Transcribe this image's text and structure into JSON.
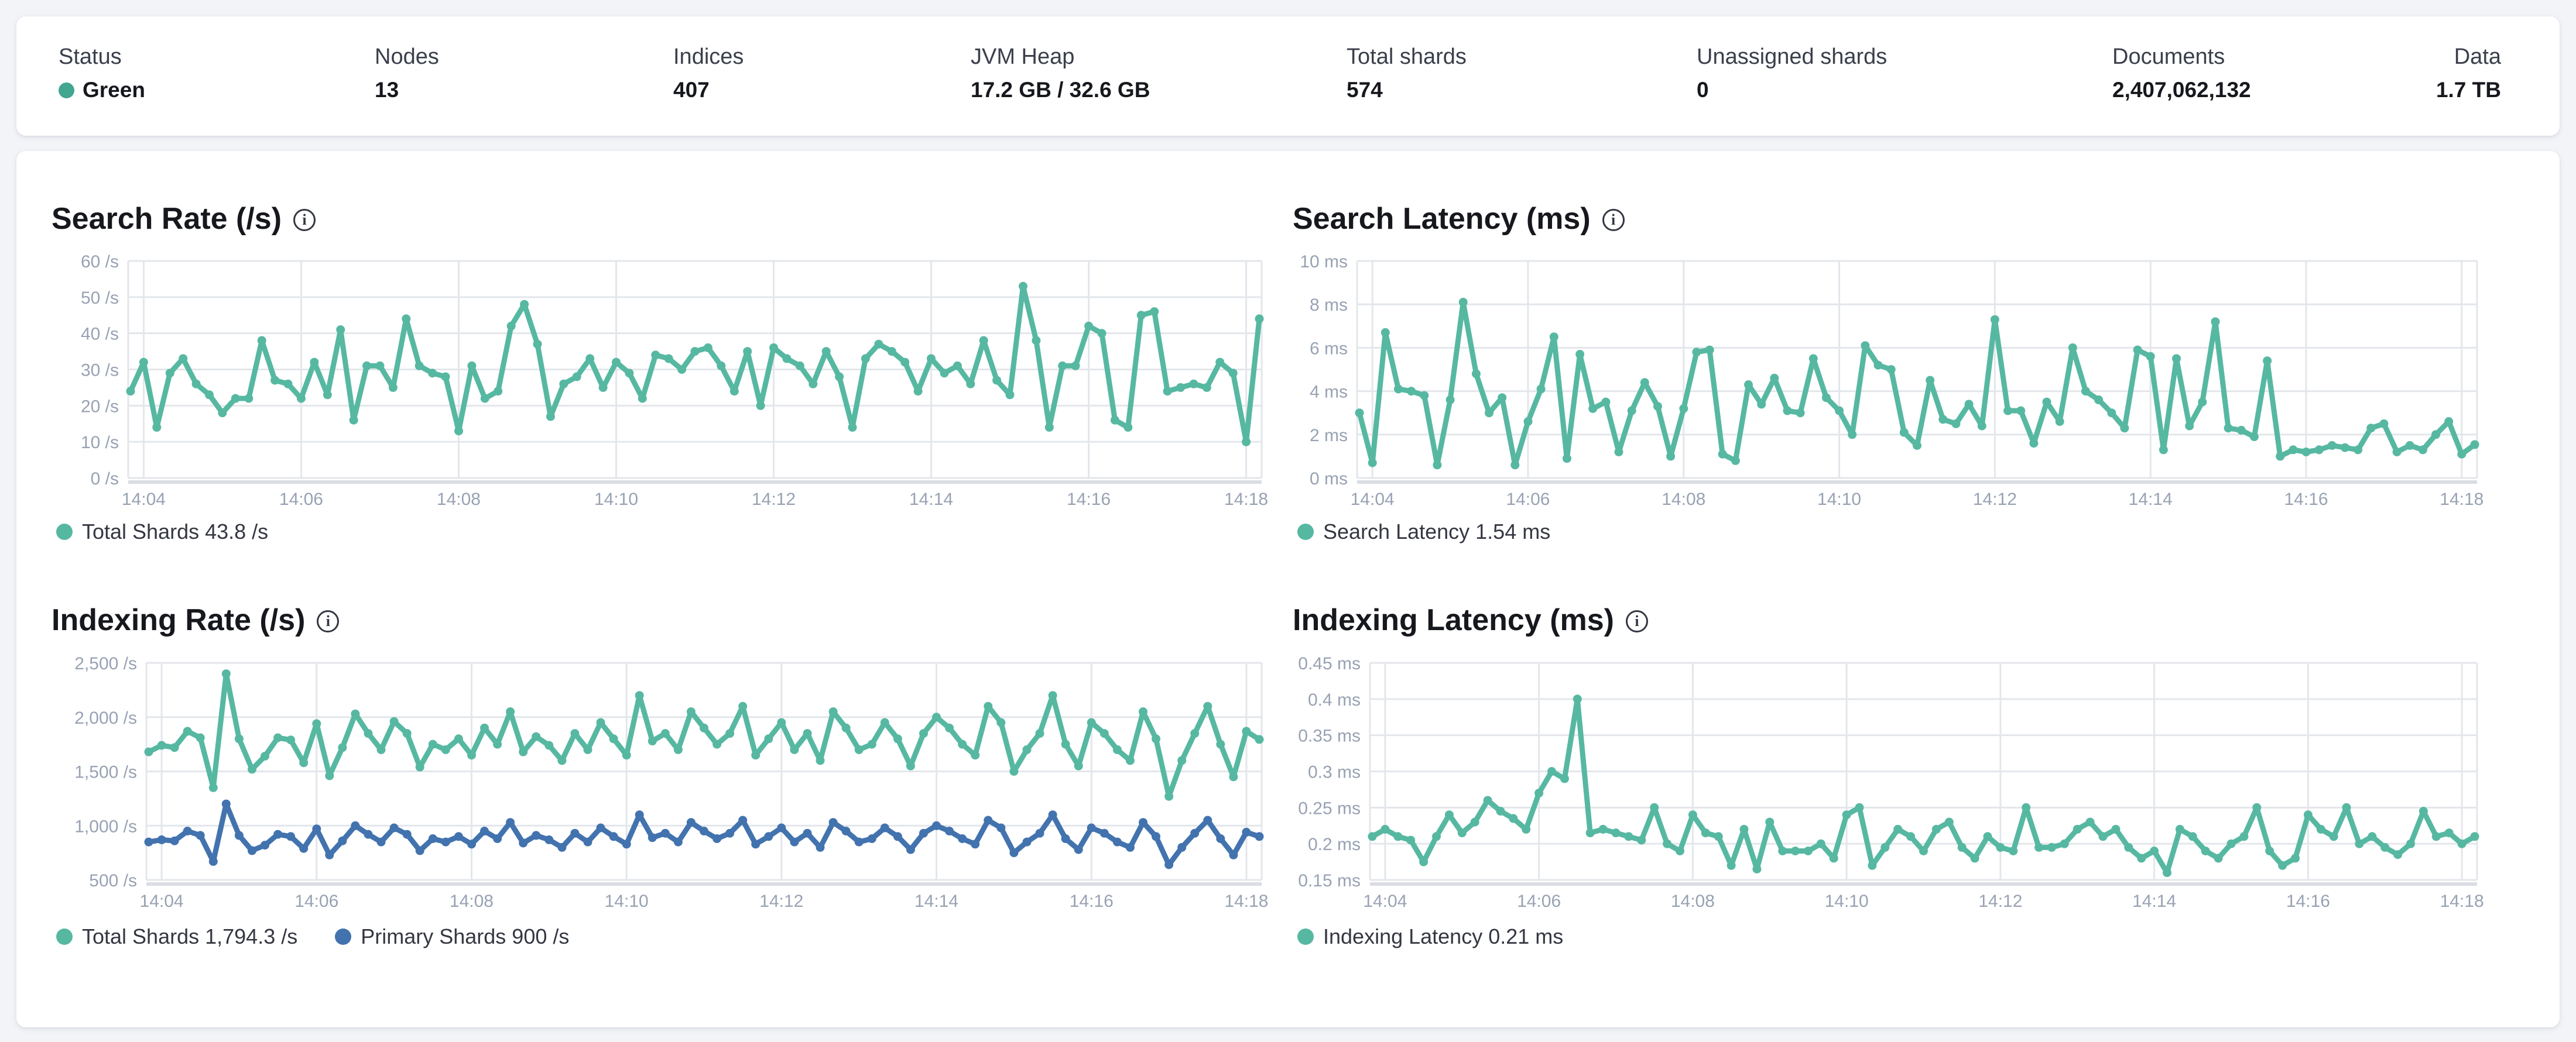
{
  "summary_bar": {
    "status_dot_color": "#43a691",
    "items": [
      {
        "label": "Status",
        "value": "Green",
        "dot": true
      },
      {
        "label": "Nodes",
        "value": "13"
      },
      {
        "label": "Indices",
        "value": "407"
      },
      {
        "label": "JVM Heap",
        "value": "17.2 GB / 32.6 GB"
      },
      {
        "label": "Total shards",
        "value": "574"
      },
      {
        "label": "Unassigned shards",
        "value": "0"
      },
      {
        "label": "Documents",
        "value": "2,407,062,132"
      },
      {
        "label": "Data",
        "value": "1.7 TB"
      }
    ]
  },
  "charts": [
    {
      "title": "Search Rate (/s)",
      "legend": [
        {
          "label": "Total Shards 43.8 /s",
          "color": "#57b8a2"
        }
      ],
      "chart_data": {
        "type": "line",
        "title": "Search Rate (/s)",
        "ylabel": "/s",
        "ylim": [
          0,
          60
        ],
        "y_ticks": [
          "60 /s",
          "50 /s",
          "40 /s",
          "30 /s",
          "20 /s",
          "10 /s",
          "0 /s"
        ],
        "x_ticks": [
          "14:04",
          "14:06",
          "14:08",
          "14:10",
          "14:12",
          "14:14",
          "14:16",
          "14:18"
        ],
        "x_tick_indices": [
          1,
          13,
          25,
          37,
          49,
          61,
          73,
          85
        ],
        "grid": true,
        "legend_position": "bottom",
        "series": [
          {
            "name": "Total Shards",
            "color": "#57b8a2",
            "current": "43.8 /s",
            "values": [
              24,
              32,
              14,
              29,
              33,
              26,
              23,
              18,
              22,
              22,
              38,
              27,
              26,
              22,
              32,
              23,
              41,
              16,
              31,
              31,
              25,
              44,
              31,
              29,
              28,
              13,
              31,
              22,
              24,
              42,
              48,
              37,
              17,
              26,
              28,
              33,
              25,
              32,
              29,
              22,
              34,
              33,
              30,
              35,
              36,
              31,
              24,
              35,
              20,
              36,
              33,
              31,
              26,
              35,
              28,
              14,
              33,
              37,
              35,
              32,
              24,
              33,
              29,
              31,
              26,
              38,
              27,
              23,
              53,
              38,
              14,
              31,
              31,
              42,
              40,
              16,
              14,
              45,
              46,
              24,
              25,
              26,
              25,
              32,
              29,
              10,
              44
            ]
          }
        ]
      }
    },
    {
      "title": "Search Latency (ms)",
      "legend": [
        {
          "label": "Search Latency 1.54 ms",
          "color": "#57b8a2"
        }
      ],
      "chart_data": {
        "type": "line",
        "title": "Search Latency (ms)",
        "ylabel": "ms",
        "ylim": [
          0,
          10
        ],
        "y_ticks": [
          "10 ms",
          "8 ms",
          "6 ms",
          "4 ms",
          "2 ms",
          "0 ms"
        ],
        "x_ticks": [
          "14:04",
          "14:06",
          "14:08",
          "14:10",
          "14:12",
          "14:14",
          "14:16",
          "14:18"
        ],
        "x_tick_indices": [
          1,
          13,
          25,
          37,
          49,
          61,
          73,
          85
        ],
        "grid": true,
        "legend_position": "bottom",
        "series": [
          {
            "name": "Search Latency",
            "color": "#57b8a2",
            "current": "1.54 ms",
            "values": [
              3.0,
              0.7,
              6.7,
              4.1,
              4.0,
              3.8,
              0.6,
              3.6,
              8.1,
              4.8,
              3.0,
              3.7,
              0.6,
              2.6,
              4.1,
              6.5,
              0.9,
              5.7,
              3.2,
              3.5,
              1.2,
              3.1,
              4.4,
              3.3,
              1.0,
              3.2,
              5.8,
              5.9,
              1.1,
              0.8,
              4.3,
              3.4,
              4.6,
              3.1,
              3.0,
              5.5,
              3.7,
              3.1,
              2.0,
              6.1,
              5.2,
              5.0,
              2.1,
              1.5,
              4.5,
              2.7,
              2.5,
              3.4,
              2.4,
              7.3,
              3.1,
              3.1,
              1.6,
              3.5,
              2.6,
              6.0,
              4.0,
              3.6,
              3.0,
              2.3,
              5.9,
              5.6,
              1.3,
              5.5,
              2.4,
              3.5,
              7.2,
              2.3,
              2.2,
              1.9,
              5.4,
              1.0,
              1.3,
              1.2,
              1.3,
              1.5,
              1.4,
              1.3,
              2.3,
              2.5,
              1.2,
              1.5,
              1.3,
              2.0,
              2.6,
              1.1,
              1.54
            ]
          }
        ]
      }
    },
    {
      "title": "Indexing Rate (/s)",
      "legend": [
        {
          "label": "Total Shards 1,794.3 /s",
          "color": "#57b8a2"
        },
        {
          "label": "Primary Shards 900 /s",
          "color": "#4273ae"
        }
      ],
      "chart_data": {
        "type": "line",
        "title": "Indexing Rate (/s)",
        "ylabel": "/s",
        "ylim": [
          500,
          2500
        ],
        "y_ticks": [
          "2,500 /s",
          "2,000 /s",
          "1,500 /s",
          "1,000 /s",
          "500 /s"
        ],
        "x_ticks": [
          "14:04",
          "14:06",
          "14:08",
          "14:10",
          "14:12",
          "14:14",
          "14:16",
          "14:18"
        ],
        "x_tick_indices": [
          1,
          13,
          25,
          37,
          49,
          61,
          73,
          85
        ],
        "grid": true,
        "legend_position": "bottom",
        "series": [
          {
            "name": "Total Shards",
            "color": "#57b8a2",
            "current": "1,794.3 /s",
            "values": [
              1680,
              1740,
              1720,
              1870,
              1810,
              1350,
              2400,
              1800,
              1520,
              1640,
              1810,
              1790,
              1580,
              1940,
              1460,
              1720,
              2030,
              1850,
              1700,
              1960,
              1850,
              1540,
              1750,
              1700,
              1800,
              1650,
              1900,
              1750,
              2050,
              1680,
              1820,
              1740,
              1600,
              1850,
              1700,
              1950,
              1800,
              1650,
              2200,
              1780,
              1850,
              1700,
              2050,
              1900,
              1750,
              1850,
              2100,
              1650,
              1800,
              1950,
              1700,
              1850,
              1600,
              2050,
              1900,
              1700,
              1750,
              1950,
              1800,
              1550,
              1850,
              2000,
              1900,
              1750,
              1650,
              2100,
              1950,
              1500,
              1700,
              1850,
              2200,
              1750,
              1550,
              1950,
              1850,
              1700,
              1600,
              2050,
              1800,
              1270,
              1600,
              1850,
              2100,
              1750,
              1450,
              1870,
              1794.3
            ]
          },
          {
            "name": "Primary Shards",
            "color": "#4273ae",
            "current": "900 /s",
            "values": [
              850,
              870,
              860,
              950,
              910,
              670,
              1200,
              910,
              770,
              820,
              920,
              900,
              790,
              970,
              730,
              860,
              1000,
              920,
              850,
              980,
              920,
              770,
              880,
              850,
              900,
              830,
              950,
              880,
              1030,
              840,
              910,
              870,
              800,
              930,
              850,
              980,
              900,
              830,
              1100,
              890,
              930,
              850,
              1030,
              950,
              880,
              930,
              1050,
              830,
              900,
              980,
              850,
              930,
              800,
              1030,
              950,
              850,
              880,
              980,
              900,
              780,
              930,
              1000,
              950,
              880,
              830,
              1050,
              980,
              750,
              850,
              930,
              1100,
              880,
              780,
              980,
              930,
              850,
              800,
              1030,
              900,
              640,
              800,
              930,
              1050,
              880,
              730,
              940,
              900
            ]
          }
        ]
      }
    },
    {
      "title": "Indexing Latency (ms)",
      "legend": [
        {
          "label": "Indexing Latency 0.21 ms",
          "color": "#57b8a2"
        }
      ],
      "chart_data": {
        "type": "line",
        "title": "Indexing Latency (ms)",
        "ylabel": "ms",
        "ylim": [
          0.15,
          0.45
        ],
        "y_ticks": [
          "0.45 ms",
          "0.4 ms",
          "0.35 ms",
          "0.3 ms",
          "0.25 ms",
          "0.2 ms",
          "0.15 ms"
        ],
        "x_ticks": [
          "14:04",
          "14:06",
          "14:08",
          "14:10",
          "14:12",
          "14:14",
          "14:16",
          "14:18"
        ],
        "x_tick_indices": [
          1,
          13,
          25,
          37,
          49,
          61,
          73,
          85
        ],
        "grid": true,
        "legend_position": "bottom",
        "series": [
          {
            "name": "Indexing Latency",
            "color": "#57b8a2",
            "current": "0.21 ms",
            "values": [
              0.21,
              0.22,
              0.21,
              0.205,
              0.175,
              0.21,
              0.24,
              0.215,
              0.23,
              0.26,
              0.245,
              0.235,
              0.22,
              0.27,
              0.3,
              0.29,
              0.4,
              0.215,
              0.22,
              0.215,
              0.21,
              0.205,
              0.25,
              0.2,
              0.19,
              0.24,
              0.215,
              0.21,
              0.17,
              0.22,
              0.165,
              0.23,
              0.19,
              0.19,
              0.19,
              0.2,
              0.18,
              0.24,
              0.25,
              0.17,
              0.195,
              0.22,
              0.21,
              0.19,
              0.22,
              0.23,
              0.195,
              0.18,
              0.21,
              0.195,
              0.19,
              0.25,
              0.195,
              0.195,
              0.2,
              0.22,
              0.23,
              0.21,
              0.22,
              0.195,
              0.18,
              0.19,
              0.16,
              0.22,
              0.21,
              0.19,
              0.18,
              0.2,
              0.21,
              0.25,
              0.19,
              0.17,
              0.18,
              0.24,
              0.22,
              0.21,
              0.25,
              0.2,
              0.21,
              0.195,
              0.185,
              0.2,
              0.245,
              0.21,
              0.215,
              0.2,
              0.21
            ]
          }
        ]
      }
    }
  ]
}
